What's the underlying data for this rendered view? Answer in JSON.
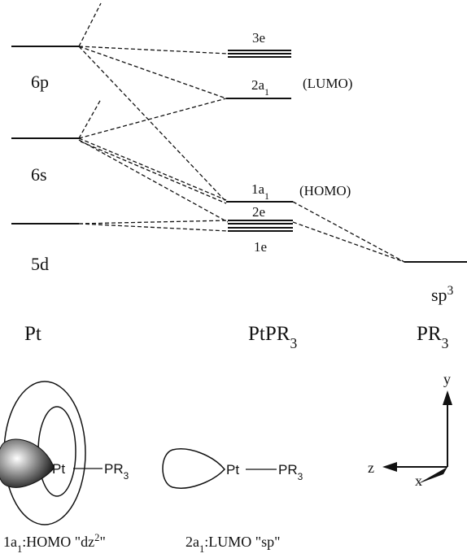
{
  "pt_levels": [
    {
      "label": "6p"
    },
    {
      "label": "6s"
    },
    {
      "label": "5d"
    }
  ],
  "complex_levels": [
    {
      "label": "3e"
    },
    {
      "label": "2a",
      "sub": "1",
      "note": "(LUMO)"
    },
    {
      "label": "1a",
      "sub": "1",
      "note": "(HOMO)"
    },
    {
      "label": "2e"
    },
    {
      "label": "1e"
    }
  ],
  "ligand_level": {
    "label": "sp",
    "sup": "3"
  },
  "columns": [
    {
      "text": "Pt"
    },
    {
      "text": "PtPR",
      "sub": "3"
    },
    {
      "text": "PR",
      "sub": "3"
    }
  ],
  "orbitals": [
    {
      "atom": "Pt",
      "ligand": "PR",
      "ligand_sub": "3",
      "caption": [
        "1a",
        "1",
        ":HOMO \"dz",
        "2",
        "\""
      ]
    },
    {
      "atom": "Pt",
      "ligand": "PR",
      "ligand_sub": "3",
      "caption": [
        "2a",
        "1",
        ":LUMO \"sp\""
      ]
    }
  ],
  "axes": {
    "y": "y",
    "z": "z",
    "x": "x"
  }
}
